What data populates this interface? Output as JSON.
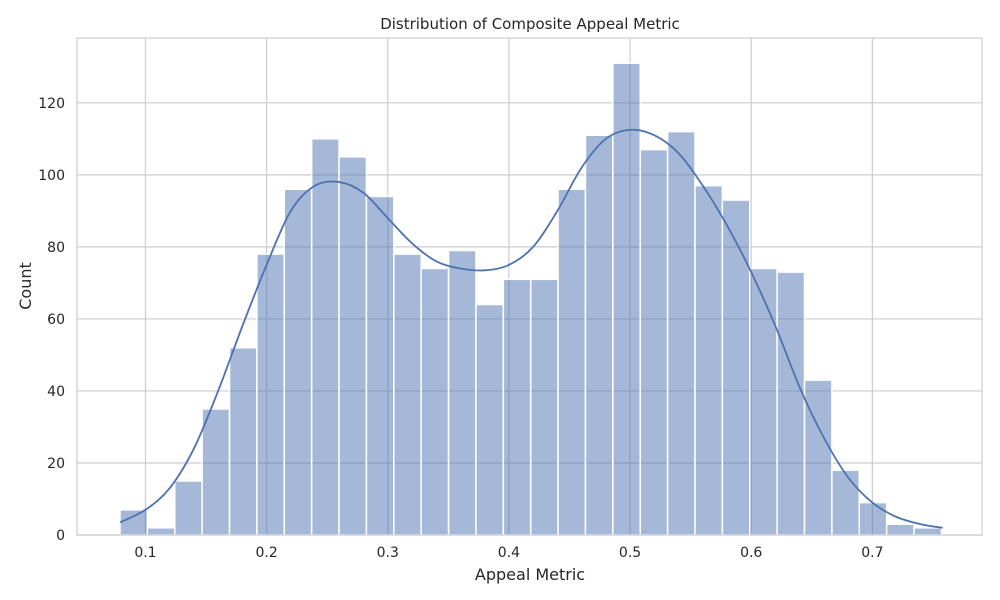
{
  "chart_data": {
    "type": "bar",
    "title": "Distribution of Composite Appeal Metric",
    "xlabel": "Appeal Metric",
    "ylabel": "Count",
    "xlim": [
      0.0435,
      0.7905
    ],
    "ylim": [
      0,
      138
    ],
    "x_ticks": [
      0.1,
      0.2,
      0.3,
      0.4,
      0.5,
      0.6,
      0.7
    ],
    "x_tick_labels": [
      "0.1",
      "0.2",
      "0.3",
      "0.4",
      "0.5",
      "0.6",
      "0.7"
    ],
    "y_ticks": [
      0,
      20,
      40,
      60,
      80,
      100,
      120
    ],
    "y_tick_labels": [
      "0",
      "20",
      "40",
      "60",
      "80",
      "100",
      "120"
    ],
    "grid": true,
    "bin_start": 0.079,
    "bin_width": 0.0226,
    "counts": [
      7,
      2,
      15,
      35,
      52,
      78,
      96,
      110,
      105,
      94,
      78,
      74,
      79,
      64,
      71,
      71,
      96,
      111,
      131,
      107,
      112,
      97,
      93,
      74,
      73,
      43,
      18,
      9,
      3,
      2
    ],
    "kde": {
      "x": [
        0.079,
        0.1,
        0.12,
        0.14,
        0.16,
        0.18,
        0.2,
        0.22,
        0.24,
        0.26,
        0.28,
        0.3,
        0.32,
        0.34,
        0.36,
        0.38,
        0.4,
        0.42,
        0.44,
        0.46,
        0.48,
        0.5,
        0.52,
        0.54,
        0.56,
        0.58,
        0.6,
        0.62,
        0.64,
        0.66,
        0.68,
        0.7,
        0.72,
        0.74,
        0.758
      ],
      "y": [
        3.5,
        7,
        13,
        24,
        40,
        58,
        75,
        90,
        97,
        98,
        95,
        88,
        81,
        76,
        74,
        73.5,
        75,
        80,
        90,
        102,
        110,
        112.5,
        111,
        106,
        97,
        86,
        73,
        58,
        41,
        27,
        16,
        9,
        5,
        3,
        2
      ]
    },
    "colors": {
      "bar_fill": "#4C72B0",
      "bar_opacity": 0.5,
      "bar_edge": "#ffffff",
      "kde_line": "#4C72B0",
      "grid": "#cccccc",
      "frame": "#cccccc"
    }
  }
}
